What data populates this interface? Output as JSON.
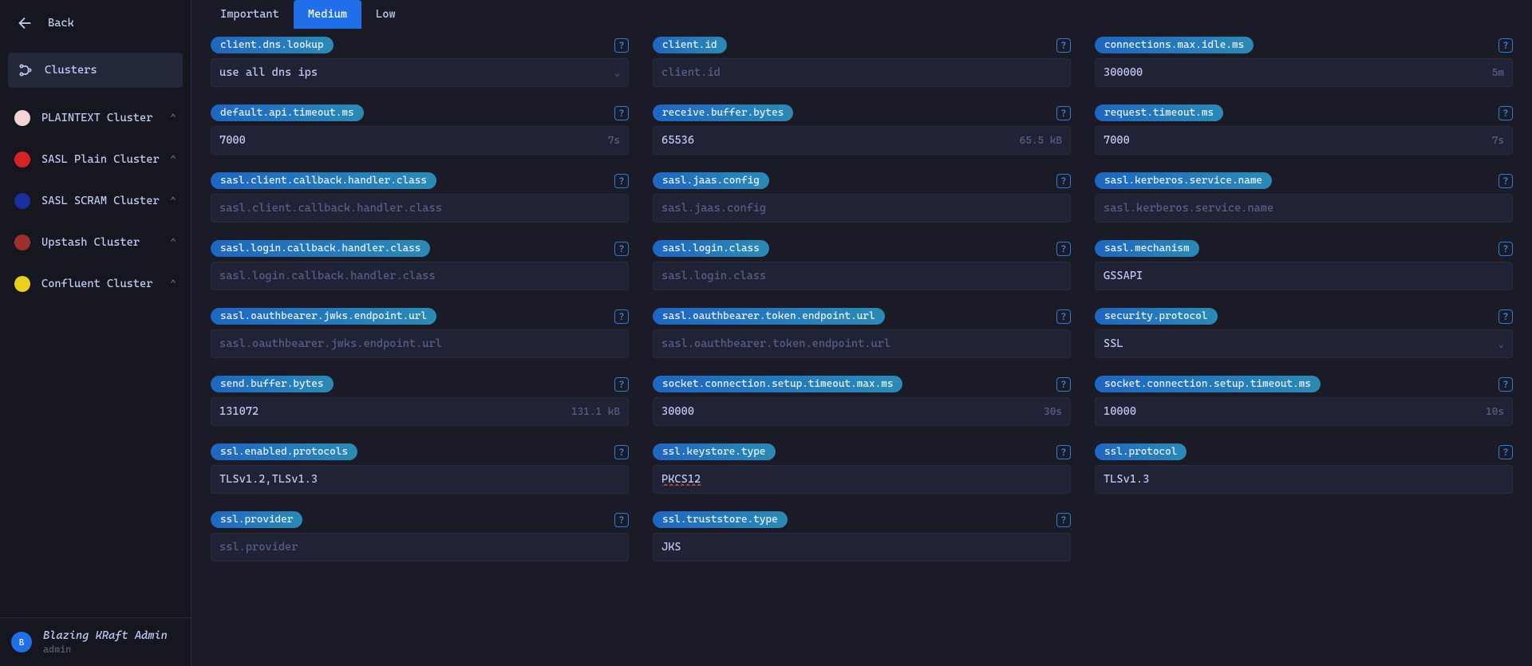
{
  "sidebar": {
    "back_label": "Back",
    "section_label": "Clusters",
    "clusters": [
      {
        "label": "PLAINTEXT Cluster",
        "color": "#f2d4d4"
      },
      {
        "label": "SASL Plain Cluster",
        "color": "#d62424"
      },
      {
        "label": "SASL SCRAM Cluster",
        "color": "#1b2f9e"
      },
      {
        "label": "Upstash Cluster",
        "color": "#9e2f2f"
      },
      {
        "label": "Confluent Cluster",
        "color": "#e8d11a"
      }
    ]
  },
  "footer": {
    "avatar_letter": "B",
    "title": "Blazing KRaft Admin",
    "role": "admin"
  },
  "tabs": {
    "items": [
      "Important",
      "Medium",
      "Low"
    ],
    "active_index": 1
  },
  "fields": [
    {
      "label": "client.dns.lookup",
      "value": "use all dns ips",
      "placeholder": "",
      "suffix": "",
      "select": true
    },
    {
      "label": "client.id",
      "value": "",
      "placeholder": "client.id",
      "suffix": "",
      "select": false
    },
    {
      "label": "connections.max.idle.ms",
      "value": "300000",
      "placeholder": "",
      "suffix": "5m",
      "select": false
    },
    {
      "label": "default.api.timeout.ms",
      "value": "7000",
      "placeholder": "",
      "suffix": "7s",
      "select": false
    },
    {
      "label": "receive.buffer.bytes",
      "value": "65536",
      "placeholder": "",
      "suffix": "65.5 kB",
      "select": false
    },
    {
      "label": "request.timeout.ms",
      "value": "7000",
      "placeholder": "",
      "suffix": "7s",
      "select": false
    },
    {
      "label": "sasl.client.callback.handler.class",
      "value": "",
      "placeholder": "sasl.client.callback.handler.class",
      "suffix": "",
      "select": false
    },
    {
      "label": "sasl.jaas.config",
      "value": "",
      "placeholder": "sasl.jaas.config",
      "suffix": "",
      "select": false
    },
    {
      "label": "sasl.kerberos.service.name",
      "value": "",
      "placeholder": "sasl.kerberos.service.name",
      "suffix": "",
      "select": false
    },
    {
      "label": "sasl.login.callback.handler.class",
      "value": "",
      "placeholder": "sasl.login.callback.handler.class",
      "suffix": "",
      "select": false
    },
    {
      "label": "sasl.login.class",
      "value": "",
      "placeholder": "sasl.login.class",
      "suffix": "",
      "select": false
    },
    {
      "label": "sasl.mechanism",
      "value": "GSSAPI",
      "placeholder": "",
      "suffix": "",
      "select": false
    },
    {
      "label": "sasl.oauthbearer.jwks.endpoint.url",
      "value": "",
      "placeholder": "sasl.oauthbearer.jwks.endpoint.url",
      "suffix": "",
      "select": false
    },
    {
      "label": "sasl.oauthbearer.token.endpoint.url",
      "value": "",
      "placeholder": "sasl.oauthbearer.token.endpoint.url",
      "suffix": "",
      "select": false
    },
    {
      "label": "security.protocol",
      "value": "SSL",
      "placeholder": "",
      "suffix": "",
      "select": true
    },
    {
      "label": "send.buffer.bytes",
      "value": "131072",
      "placeholder": "",
      "suffix": "131.1 kB",
      "select": false
    },
    {
      "label": "socket.connection.setup.timeout.max.ms",
      "value": "30000",
      "placeholder": "",
      "suffix": "30s",
      "select": false
    },
    {
      "label": "socket.connection.setup.timeout.ms",
      "value": "10000",
      "placeholder": "",
      "suffix": "10s",
      "select": false
    },
    {
      "label": "ssl.enabled.protocols",
      "value": "TLSv1.2,TLSv1.3",
      "placeholder": "",
      "suffix": "",
      "select": false
    },
    {
      "label": "ssl.keystore.type",
      "value": "PKCS12",
      "placeholder": "",
      "suffix": "",
      "select": false,
      "red_underline": true
    },
    {
      "label": "ssl.protocol",
      "value": "TLSv1.3",
      "placeholder": "",
      "suffix": "",
      "select": false
    },
    {
      "label": "ssl.provider",
      "value": "",
      "placeholder": "ssl.provider",
      "suffix": "",
      "select": false
    },
    {
      "label": "ssl.truststore.type",
      "value": "JKS",
      "placeholder": "",
      "suffix": "",
      "select": false
    }
  ],
  "colors": {
    "bg": "#1a1b26",
    "sidebar_bg": "#16161e",
    "panel_bg": "#24283b",
    "field_bg": "#1f2335",
    "pill_start": "#1e66c2",
    "pill_end": "#2a8bb5",
    "active_tab": "#1f6feb",
    "text": "#c0caf5",
    "muted": "#565f89"
  }
}
